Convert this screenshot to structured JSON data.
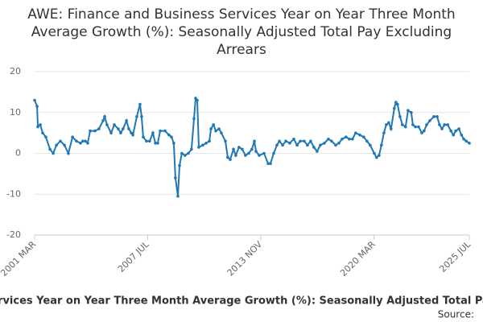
{
  "chart_data": {
    "type": "line",
    "title": "AWE: Finance and Business Services Year on Year Three Month Average Growth (%): Seasonally Adjusted Total Pay Excluding Arrears",
    "x_label": "AWE: Finance and Business Services Year on Year Three Month Average Growth (%): Seasonally Adjusted Total Pay Excluding Arrears",
    "source": "Source:",
    "x": [
      2001.17,
      2001.31,
      2001.35,
      2001.49,
      2001.62,
      2001.8,
      2002.03,
      2002.21,
      2002.39,
      2002.61,
      2002.84,
      2003.06,
      2003.29,
      2003.51,
      2003.74,
      2003.87,
      2004.01,
      2004.14,
      2004.28,
      2004.55,
      2004.77,
      2005.0,
      2005.09,
      2005.22,
      2005.45,
      2005.63,
      2005.85,
      2005.99,
      2006.12,
      2006.31,
      2006.44,
      2006.58,
      2006.67,
      2006.89,
      2007.07,
      2007.16,
      2007.25,
      2007.43,
      2007.61,
      2007.79,
      2007.93,
      2008.06,
      2008.2,
      2008.47,
      2008.69,
      2008.83,
      2008.96,
      2009.05,
      2009.19,
      2009.28,
      2009.41,
      2009.59,
      2009.77,
      2009.95,
      2010.09,
      2010.18,
      2010.27,
      2010.36,
      2010.58,
      2010.77,
      2010.95,
      2011.04,
      2011.18,
      2011.31,
      2011.49,
      2011.62,
      2011.85,
      2011.98,
      2012.12,
      2012.3,
      2012.43,
      2012.61,
      2012.79,
      2012.97,
      2013.15,
      2013.33,
      2013.47,
      2013.56,
      2013.74,
      2014.01,
      2014.24,
      2014.37,
      2014.55,
      2014.73,
      2014.87,
      2015.05,
      2015.23,
      2015.45,
      2015.68,
      2015.86,
      2016.04,
      2016.26,
      2016.44,
      2016.62,
      2016.8,
      2016.98,
      2017.16,
      2017.39,
      2017.61,
      2017.79,
      2018.02,
      2018.2,
      2018.38,
      2018.6,
      2018.78,
      2018.96,
      2019.14,
      2019.37,
      2019.59,
      2019.77,
      2019.95,
      2020.18,
      2020.31,
      2020.45,
      2020.58,
      2020.72,
      2020.85,
      2020.99,
      2021.12,
      2021.3,
      2021.39,
      2021.48,
      2021.62,
      2021.75,
      2021.93,
      2022.07,
      2022.25,
      2022.34,
      2022.48,
      2022.66,
      2022.84,
      2022.97,
      2023.11,
      2023.29,
      2023.52,
      2023.7,
      2023.83,
      2023.97,
      2024.11,
      2024.29,
      2024.47,
      2024.61,
      2024.74,
      2024.92,
      2025.06,
      2025.19,
      2025.33,
      2025.5
    ],
    "values": [
      13,
      11.5,
      6.5,
      7,
      5,
      4,
      1,
      0,
      2,
      3,
      2,
      0,
      4,
      3,
      2.5,
      3,
      3,
      2.5,
      5.5,
      5.5,
      6,
      8,
      9,
      7,
      5,
      7,
      6,
      5,
      6,
      8,
      6,
      5,
      4.5,
      9,
      12,
      9,
      4,
      3,
      3,
      5,
      2.5,
      2.5,
      5.5,
      5.5,
      4.5,
      4,
      2.5,
      -6,
      -10.5,
      -3,
      0,
      -0.5,
      0,
      1,
      8.5,
      13.5,
      13,
      1.5,
      2,
      2.5,
      3,
      6,
      7,
      5.5,
      6,
      5,
      3,
      -1,
      -1.5,
      1,
      -0.5,
      1.5,
      1,
      -0.5,
      0,
      1,
      3,
      0.5,
      -0.5,
      0,
      -2.5,
      -2.5,
      0,
      2,
      3,
      2,
      3,
      2.5,
      3.5,
      2,
      3,
      3,
      2,
      3,
      1.5,
      0.5,
      2,
      2.5,
      3.5,
      3,
      2,
      2.5,
      3.5,
      4,
      3.5,
      3.5,
      5,
      4.5,
      4,
      3,
      2,
      0,
      -1,
      -0.5,
      2,
      5,
      7,
      7.5,
      6,
      11,
      12.5,
      12,
      9,
      7,
      6.5,
      10.5,
      10,
      7,
      6.5,
      6.5,
      5,
      5.5,
      7,
      8,
      9,
      9,
      7,
      6,
      7,
      7,
      5.5,
      4.5,
      5.5,
      6,
      4.5,
      3.5,
      3,
      2.5
    ],
    "color": "#1f78b4",
    "xlim": [
      2001.17,
      2025.5
    ],
    "xticks": [
      {
        "value": 2001.17,
        "label": "2001 MAR"
      },
      {
        "value": 2007.5,
        "label": "2007 JUL"
      },
      {
        "value": 2013.83,
        "label": "2013 NOV"
      },
      {
        "value": 2020.17,
        "label": "2020 MAR"
      },
      {
        "value": 2025.5,
        "label": "2025 JUL"
      }
    ],
    "ylim": [
      -20,
      20
    ],
    "yticks": [
      -20,
      -10,
      0,
      10,
      20
    ],
    "grid": true
  }
}
